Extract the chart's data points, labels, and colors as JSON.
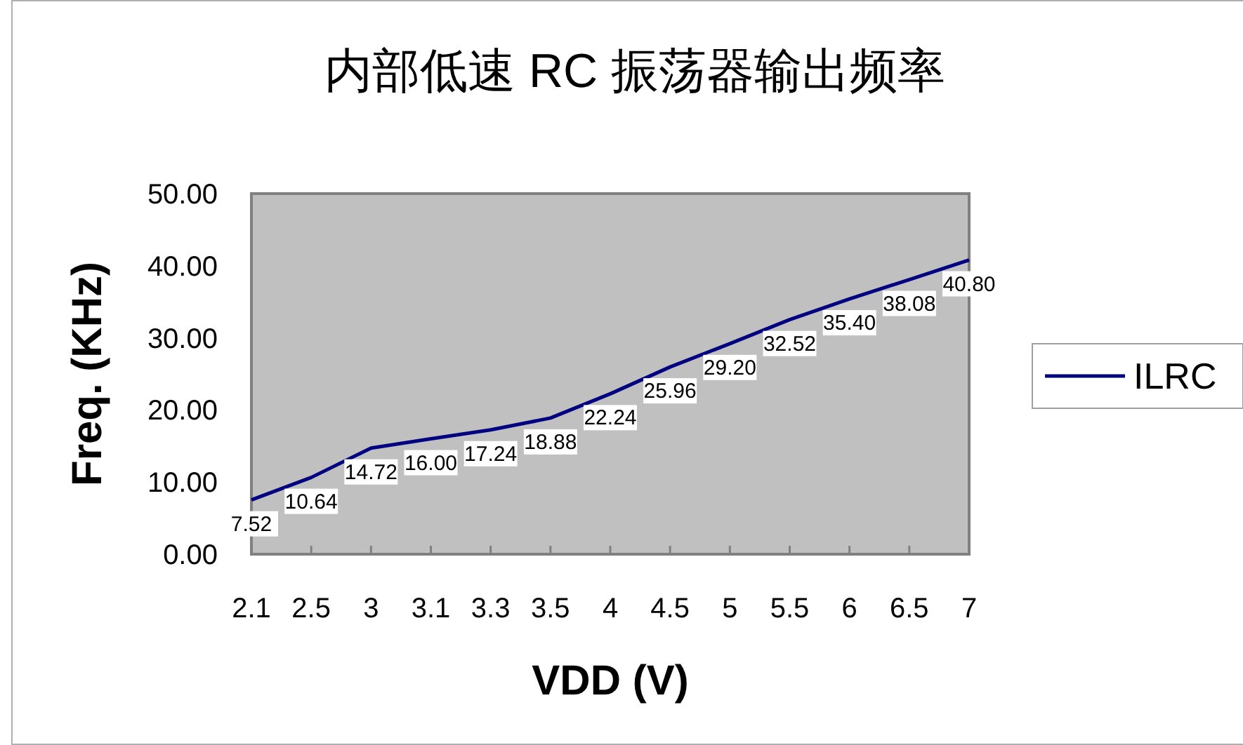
{
  "chart_data": {
    "type": "line",
    "title": "内部低速 RC 振荡器输出频率",
    "xlabel": "VDD (V)",
    "ylabel": "Freq. (KHz)",
    "categories": [
      "2.1",
      "2.5",
      "3",
      "3.1",
      "3.3",
      "3.5",
      "4",
      "4.5",
      "5",
      "5.5",
      "6",
      "6.5",
      "7"
    ],
    "series": [
      {
        "name": "ILRC",
        "color": "#000080",
        "values": [
          7.52,
          10.64,
          14.72,
          16.0,
          17.24,
          18.88,
          22.24,
          25.96,
          29.2,
          32.52,
          35.4,
          38.08,
          40.8
        ],
        "value_labels": [
          "7.52",
          "10.64",
          "14.72",
          "16.00",
          "17.24",
          "18.88",
          "22.24",
          "25.96",
          "29.20",
          "32.52",
          "35.40",
          "38.08",
          "40.80"
        ]
      }
    ],
    "ylim": [
      0,
      50
    ],
    "yticks": [
      {
        "value": 0,
        "label": "0.00"
      },
      {
        "value": 10,
        "label": "10.00"
      },
      {
        "value": 20,
        "label": "20.00"
      },
      {
        "value": 30,
        "label": "30.00"
      },
      {
        "value": 40,
        "label": "40.00"
      },
      {
        "value": 50,
        "label": "50.00"
      }
    ],
    "legend": "right",
    "grid": false,
    "marker": "none",
    "line_style": "solid"
  }
}
